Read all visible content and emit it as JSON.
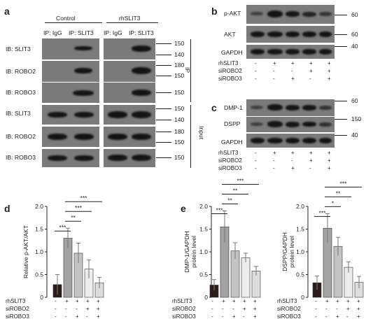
{
  "panel_a": {
    "letter": "a",
    "group_control": "Control",
    "group_rhslit3": "rhSLIT3",
    "ip_igg": "IP: IgG",
    "ip_slit3": "IP: SLIT3",
    "rows": [
      {
        "label": "IB: SLIT3",
        "markers": [
          "150",
          "140"
        ]
      },
      {
        "label": "IB: ROBO2",
        "markers": [
          "180",
          "150"
        ]
      },
      {
        "label": "IB: ROBO3",
        "markers": [
          "150"
        ]
      },
      {
        "label": "IB: SLIT3",
        "markers": [
          "150",
          "140"
        ]
      },
      {
        "label": "IB: ROBO2",
        "markers": [
          "180",
          "150"
        ]
      },
      {
        "label": "IB: ROBO3",
        "markers": [
          "150"
        ]
      }
    ],
    "section_ip": "IP",
    "section_input": "Input"
  },
  "panel_b": {
    "letter": "b",
    "blots": [
      {
        "label": "p-AKT",
        "marker": "60"
      },
      {
        "label": "AKT",
        "marker": "60"
      },
      {
        "label": "GAPDH",
        "marker": "40"
      }
    ]
  },
  "panel_c": {
    "letter": "c",
    "blots": [
      {
        "label": "DMP-1",
        "marker": "60"
      },
      {
        "label": "DSPP",
        "marker": "150"
      },
      {
        "label": "GAPDH",
        "marker": "40"
      }
    ]
  },
  "conditions": {
    "rows": [
      "rhSLIT3",
      "siROBO2",
      "siROBO3"
    ],
    "values": [
      [
        "-",
        "+",
        "+",
        "+",
        "+"
      ],
      [
        "-",
        "-",
        "-",
        "+",
        "+"
      ],
      [
        "-",
        "-",
        "+",
        "-",
        "+"
      ]
    ]
  },
  "panel_d": {
    "letter": "d"
  },
  "panel_e": {
    "letter": "e"
  },
  "chart_data": [
    {
      "type": "bar",
      "ylabel": "Relative p-AKT/AKT",
      "ylim": [
        0,
        2
      ],
      "yticks": [
        "0",
        "0.5",
        "1.0",
        "1.5",
        "2.0"
      ],
      "values": [
        0.28,
        1.3,
        0.97,
        0.62,
        0.32
      ],
      "errors": [
        0.22,
        0.22,
        0.22,
        0.2,
        0.12
      ],
      "fills": [
        "#2b1d1c",
        "#a3a3a3",
        "#c3c3c3",
        "#ececec",
        "#dddddd"
      ],
      "significance": [
        "***",
        "**",
        "***",
        "***"
      ]
    },
    {
      "type": "bar",
      "ylabel": "DMP-1/GAPDH protein level",
      "ylim": [
        0,
        2
      ],
      "yticks": [
        "0",
        "0.5",
        "1.0",
        "1.5",
        "2.0"
      ],
      "values": [
        0.27,
        1.55,
        1.02,
        0.87,
        0.58
      ],
      "errors": [
        0.12,
        0.35,
        0.18,
        0.1,
        0.1
      ],
      "fills": [
        "#2b1d1c",
        "#a3a3a3",
        "#c3c3c3",
        "#ececec",
        "#dddddd"
      ],
      "significance": [
        "***",
        "**",
        "**",
        "***"
      ]
    },
    {
      "type": "bar",
      "ylabel": "DSPP/GAPDH protein level",
      "ylim": [
        0,
        2
      ],
      "yticks": [
        "0",
        "0.5",
        "1.0",
        "1.5",
        "2.0"
      ],
      "values": [
        0.32,
        1.52,
        1.12,
        0.66,
        0.33
      ],
      "errors": [
        0.15,
        0.32,
        0.2,
        0.12,
        0.13
      ],
      "fills": [
        "#2b1d1c",
        "#a3a3a3",
        "#c3c3c3",
        "#ececec",
        "#dddddd"
      ],
      "significance": [
        "***",
        "*",
        "**",
        "***"
      ]
    }
  ]
}
